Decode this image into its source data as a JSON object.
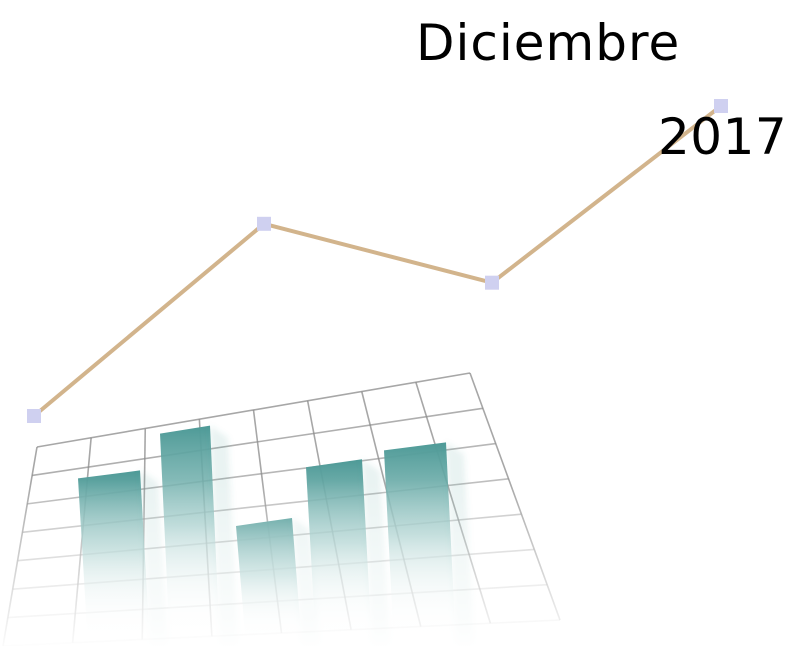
{
  "header": {
    "month": "Diciembre",
    "year": "2017"
  },
  "colors": {
    "line": "#d2b48c",
    "marker": "#cfd0f0",
    "bar_top": "#4e9a97",
    "grid": "#8a8a8a",
    "text": "#000000"
  },
  "decoration": {
    "icon": "chart-clipart-icon",
    "bar_levels": [
      0.62,
      0.78,
      0.45,
      0.66,
      0.72
    ],
    "line_levels": [
      0.0,
      0.62,
      0.43,
      1.0
    ]
  }
}
